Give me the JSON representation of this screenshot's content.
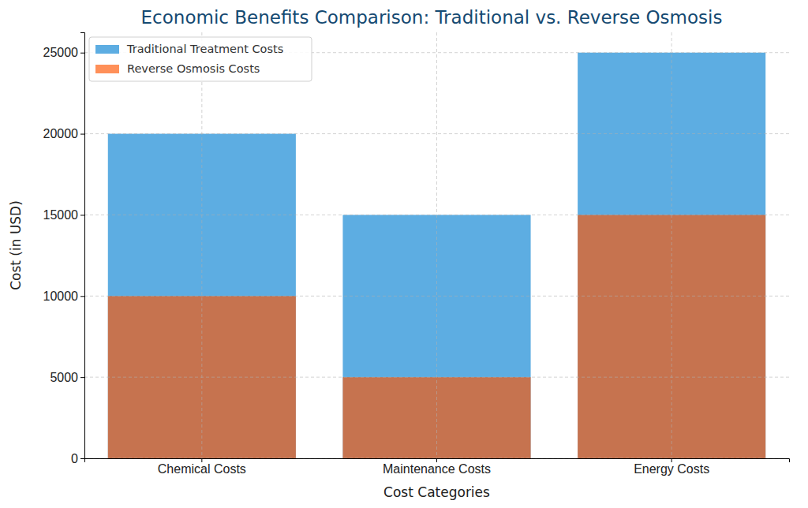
{
  "chart_data": {
    "type": "bar",
    "title": "Economic Benefits Comparison: Traditional vs. Reverse Osmosis",
    "x_label": "Cost Categories",
    "y_label": "Cost (in USD)",
    "categories": [
      "Chemical Costs",
      "Maintenance Costs",
      "Energy Costs"
    ],
    "series": [
      {
        "name": "Traditional Treatment Costs",
        "color": "#5dade2",
        "values": [
          20000,
          15000,
          25000
        ]
      },
      {
        "name": "Reverse Osmosis Costs",
        "color": "#ff5500",
        "values": [
          10000,
          5000,
          15000
        ]
      }
    ],
    "ylim": [
      0,
      26250
    ],
    "yticks": [
      0,
      5000,
      10000,
      15000,
      20000,
      25000
    ],
    "grid": true,
    "legend": "top-left"
  }
}
